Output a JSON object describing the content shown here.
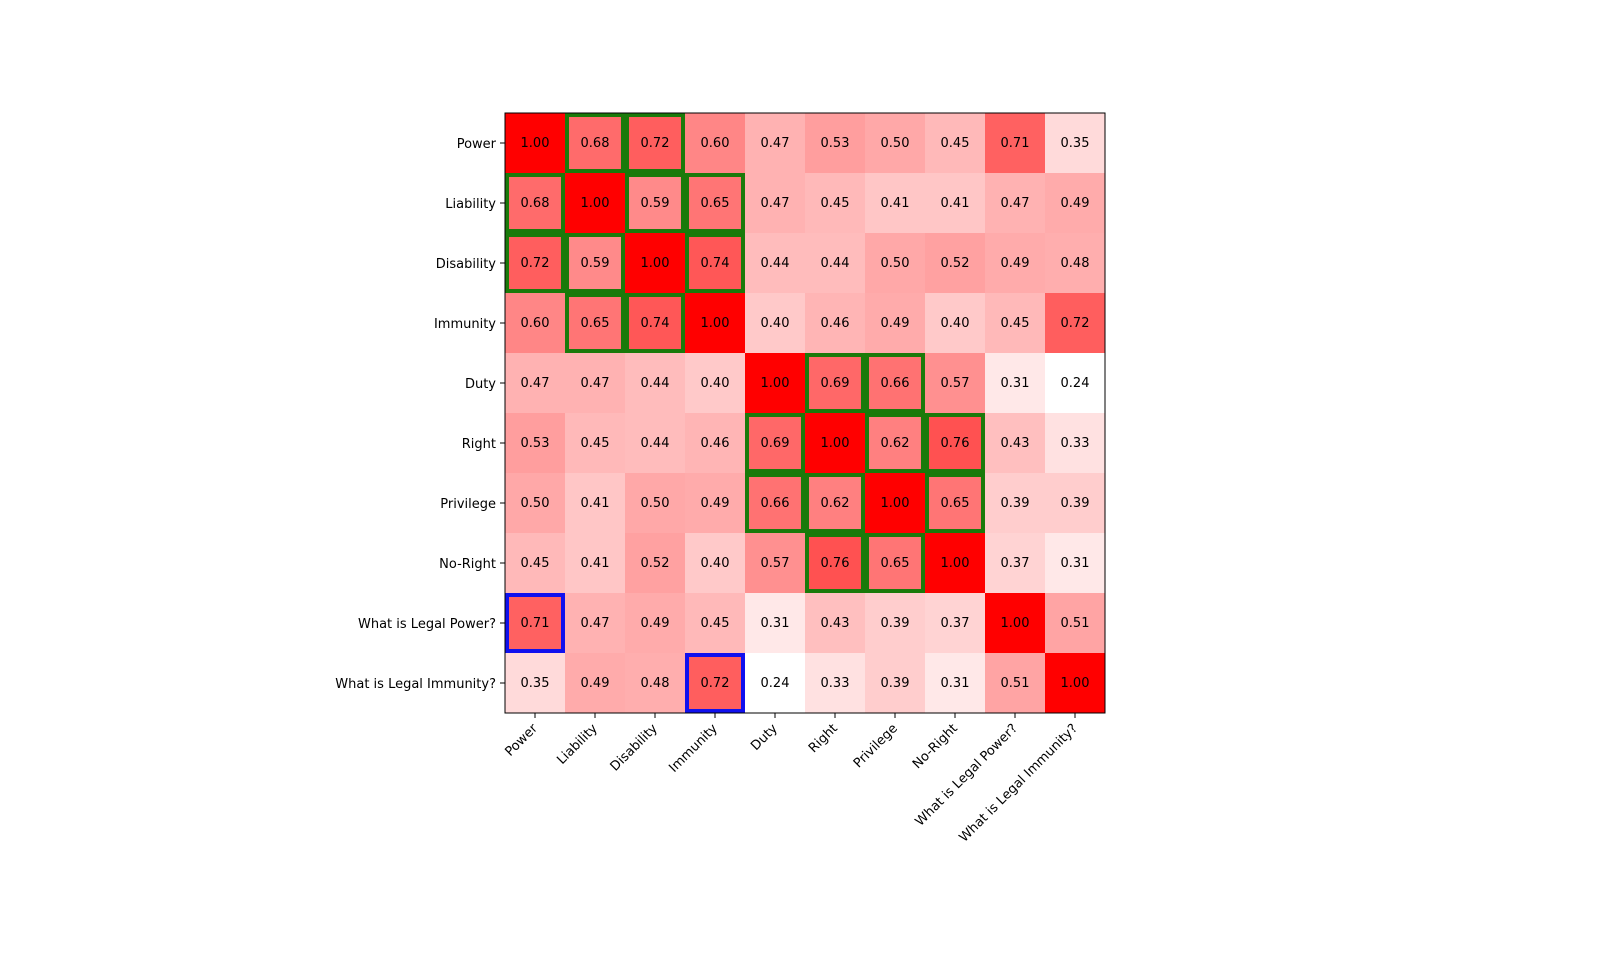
{
  "chart_data": {
    "type": "heatmap",
    "title": "",
    "xlabel": "",
    "ylabel": "",
    "x_labels": [
      "Power",
      "Liability",
      "Disability",
      "Immunity",
      "Duty",
      "Right",
      "Privilege",
      "No-Right",
      "What is Legal Power?",
      "What is Legal Immunity?"
    ],
    "y_labels": [
      "Power",
      "Liability",
      "Disability",
      "Immunity",
      "Duty",
      "Right",
      "Privilege",
      "No-Right",
      "What is Legal Power?",
      "What is Legal Immunity?"
    ],
    "values": [
      [
        1.0,
        0.68,
        0.72,
        0.6,
        0.47,
        0.53,
        0.5,
        0.45,
        0.71,
        0.35
      ],
      [
        0.68,
        1.0,
        0.59,
        0.65,
        0.47,
        0.45,
        0.41,
        0.41,
        0.47,
        0.49
      ],
      [
        0.72,
        0.59,
        1.0,
        0.74,
        0.44,
        0.44,
        0.5,
        0.52,
        0.49,
        0.48
      ],
      [
        0.6,
        0.65,
        0.74,
        1.0,
        0.4,
        0.46,
        0.49,
        0.4,
        0.45,
        0.72
      ],
      [
        0.47,
        0.47,
        0.44,
        0.4,
        1.0,
        0.69,
        0.66,
        0.57,
        0.31,
        0.24
      ],
      [
        0.53,
        0.45,
        0.44,
        0.46,
        0.69,
        1.0,
        0.62,
        0.76,
        0.43,
        0.33
      ],
      [
        0.5,
        0.41,
        0.5,
        0.49,
        0.66,
        0.62,
        1.0,
        0.65,
        0.39,
        0.39
      ],
      [
        0.45,
        0.41,
        0.52,
        0.4,
        0.57,
        0.76,
        0.65,
        1.0,
        0.37,
        0.31
      ],
      [
        0.71,
        0.47,
        0.49,
        0.45,
        0.31,
        0.43,
        0.39,
        0.37,
        1.0,
        0.51
      ],
      [
        0.35,
        0.49,
        0.48,
        0.72,
        0.24,
        0.33,
        0.39,
        0.31,
        0.51,
        1.0
      ]
    ],
    "value_format": "0.00",
    "colormap": {
      "low_color": "#ffffff",
      "high_color": "#ff0000",
      "vmin": 0.24,
      "vmax": 1.0
    },
    "highlights": [
      {
        "row": 0,
        "col": 1,
        "color": "#1a7a0a"
      },
      {
        "row": 0,
        "col": 2,
        "color": "#1a7a0a"
      },
      {
        "row": 1,
        "col": 0,
        "color": "#1a7a0a"
      },
      {
        "row": 1,
        "col": 2,
        "color": "#1a7a0a"
      },
      {
        "row": 1,
        "col": 3,
        "color": "#1a7a0a"
      },
      {
        "row": 2,
        "col": 0,
        "color": "#1a7a0a"
      },
      {
        "row": 2,
        "col": 1,
        "color": "#1a7a0a"
      },
      {
        "row": 2,
        "col": 3,
        "color": "#1a7a0a"
      },
      {
        "row": 3,
        "col": 1,
        "color": "#1a7a0a"
      },
      {
        "row": 3,
        "col": 2,
        "color": "#1a7a0a"
      },
      {
        "row": 4,
        "col": 5,
        "color": "#1a7a0a"
      },
      {
        "row": 4,
        "col": 6,
        "color": "#1a7a0a"
      },
      {
        "row": 5,
        "col": 4,
        "color": "#1a7a0a"
      },
      {
        "row": 5,
        "col": 6,
        "color": "#1a7a0a"
      },
      {
        "row": 5,
        "col": 7,
        "color": "#1a7a0a"
      },
      {
        "row": 6,
        "col": 4,
        "color": "#1a7a0a"
      },
      {
        "row": 6,
        "col": 5,
        "color": "#1a7a0a"
      },
      {
        "row": 6,
        "col": 7,
        "color": "#1a7a0a"
      },
      {
        "row": 7,
        "col": 5,
        "color": "#1a7a0a"
      },
      {
        "row": 7,
        "col": 6,
        "color": "#1a7a0a"
      },
      {
        "row": 8,
        "col": 0,
        "color": "#1010ee"
      },
      {
        "row": 9,
        "col": 3,
        "color": "#1010ee"
      }
    ],
    "legend": "none",
    "grid": false
  }
}
